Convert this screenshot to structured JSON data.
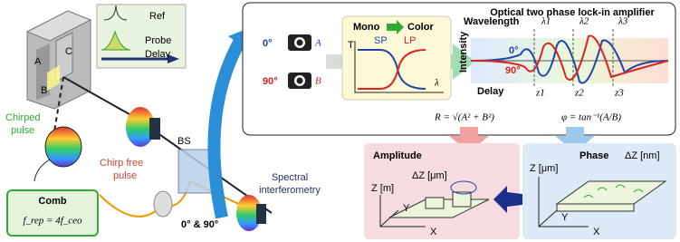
{
  "legend": {
    "ref": "Ref",
    "probe": "Probe",
    "delay": "Delay"
  },
  "block": {
    "a": "A",
    "b": "B",
    "c": "C"
  },
  "left": {
    "chirped": [
      "Chirped",
      "pulse"
    ],
    "comb_title": "Comb",
    "comb_formula": "f_rep = 4f_ceo",
    "chirp_free": [
      "Chirp free",
      "pulse"
    ],
    "bs": "BS",
    "phases": "0° & 90°",
    "spectral": [
      "Spectral",
      "interferometry"
    ]
  },
  "cameras": {
    "deg0": "0°",
    "a": "A",
    "deg90": "90°",
    "b": "B"
  },
  "filter": {
    "mono": "Mono",
    "color": "Color",
    "t": "T",
    "sp": "SP",
    "lp": "LP",
    "lambda": "λ"
  },
  "lockin": {
    "title": "Optical two phase lock-in amplifier",
    "wavelength": "Wavelength",
    "lambdas": [
      "λ1",
      "λ2",
      "λ3"
    ],
    "intensity": "Intensity",
    "deg0": "0°",
    "deg90": "90°",
    "delay": "Delay",
    "zs": [
      "z1",
      "z2",
      "z3"
    ]
  },
  "formulas": {
    "r": "R = √(A² + B²)",
    "phi": "φ = tan⁻¹(A/B)"
  },
  "amplitude": {
    "title": "Amplitude",
    "dz": "ΔZ [μm]",
    "z": "Z [m]",
    "y": "Y",
    "x": "X"
  },
  "phase": {
    "title": "Phase",
    "dz": "ΔZ [nm]",
    "z": "Z [μm]",
    "y": "Y",
    "x": "X"
  }
}
